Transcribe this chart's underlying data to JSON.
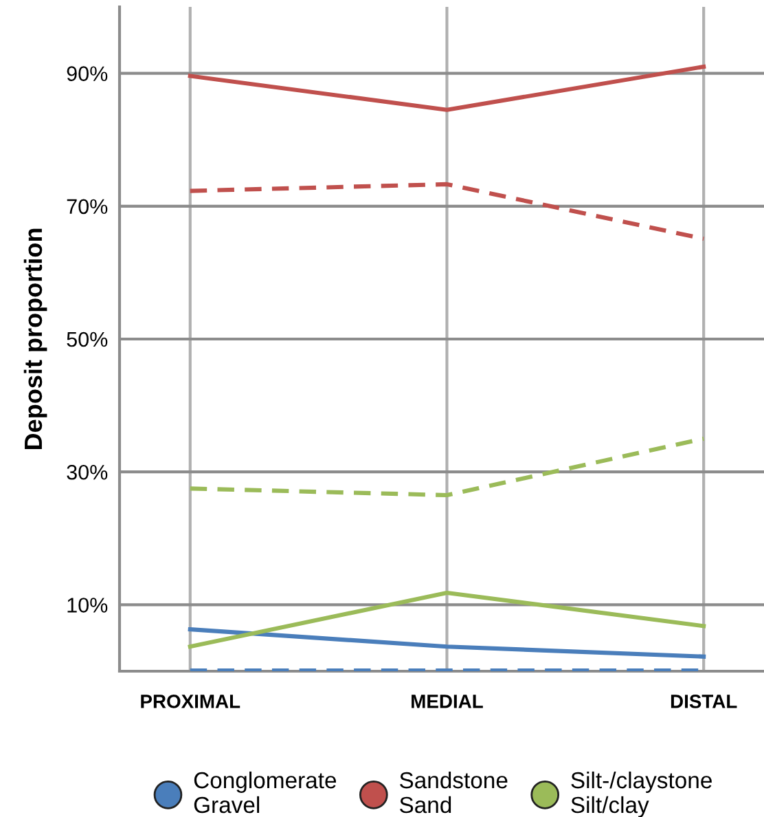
{
  "chart_data": {
    "type": "line",
    "ylabel": "Deposit proportion",
    "categories": [
      "PROXIMAL",
      "MEDIAL",
      "DISTAL"
    ],
    "ylim": [
      0,
      100
    ],
    "yticks": [
      {
        "value": 10,
        "label": "10%"
      },
      {
        "value": 30,
        "label": "30%"
      },
      {
        "value": 50,
        "label": "50%"
      },
      {
        "value": 70,
        "label": "70%"
      },
      {
        "value": 90,
        "label": "90%"
      }
    ],
    "grid": true,
    "legend": "bottom",
    "marker": "none",
    "series": [
      {
        "name": "Conglomerate\nGravel",
        "color": "#4a7ebb",
        "line_style": "solid",
        "values": [
          6.3,
          3.7,
          2.2
        ]
      },
      {
        "color": "#4a7ebb",
        "line_style": "dashed",
        "values": [
          0.1,
          0.1,
          0.1
        ]
      },
      {
        "name": "Sandstone\nSand",
        "color": "#c0504d",
        "line_style": "solid",
        "values": [
          89.6,
          84.5,
          91.0
        ]
      },
      {
        "color": "#c0504d",
        "line_style": "dashed",
        "values": [
          72.3,
          73.3,
          65.1
        ]
      },
      {
        "name": "Silt-/claystone\nSilt/clay",
        "color": "#9bbb59",
        "line_style": "solid",
        "values": [
          3.7,
          11.8,
          6.8
        ]
      },
      {
        "color": "#9bbb59",
        "line_style": "dashed",
        "values": [
          27.5,
          26.5,
          35.0
        ]
      }
    ]
  }
}
